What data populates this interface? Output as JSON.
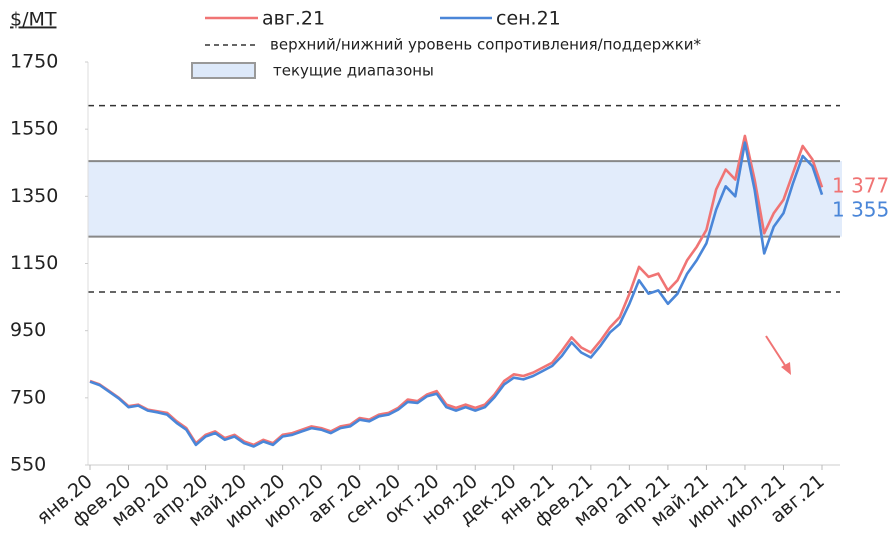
{
  "chart_data": {
    "type": "line",
    "y_label": "$/MT",
    "ylim": [
      550,
      1750
    ],
    "yticks": [
      550,
      750,
      950,
      1150,
      1350,
      1550,
      1750
    ],
    "categories": [
      "янв.20",
      null,
      null,
      null,
      "фев.20",
      null,
      null,
      null,
      "мар.20",
      null,
      null,
      null,
      "апр.20",
      null,
      null,
      null,
      "май.20",
      null,
      null,
      null,
      "июн.20",
      null,
      null,
      null,
      "июл.20",
      null,
      null,
      null,
      "авг.20",
      null,
      null,
      null,
      "сен.20",
      null,
      null,
      null,
      "окт.20",
      null,
      null,
      null,
      "ноя.20",
      null,
      null,
      null,
      "дек.20",
      null,
      null,
      null,
      "янв.21",
      null,
      null,
      null,
      "фев.21",
      null,
      null,
      null,
      "мар.21",
      null,
      null,
      null,
      "апр.21",
      null,
      null,
      null,
      "май.21",
      null,
      null,
      null,
      "июн.21",
      null,
      null,
      null,
      "июл.21",
      null,
      null,
      null,
      "авг.21"
    ],
    "series": [
      {
        "name": "авг.21",
        "color": "#f07474",
        "values": [
          800,
          790,
          770,
          750,
          725,
          730,
          715,
          710,
          705,
          680,
          660,
          615,
          640,
          650,
          630,
          640,
          620,
          610,
          625,
          615,
          640,
          645,
          655,
          665,
          660,
          650,
          665,
          670,
          690,
          685,
          700,
          705,
          720,
          745,
          740,
          760,
          770,
          730,
          720,
          730,
          720,
          730,
          760,
          800,
          820,
          815,
          825,
          840,
          855,
          890,
          930,
          900,
          885,
          920,
          960,
          990,
          1060,
          1140,
          1110,
          1120,
          1070,
          1100,
          1160,
          1200,
          1250,
          1370,
          1430,
          1400,
          1530,
          1400,
          1240,
          1300,
          1340,
          1420,
          1500,
          1460,
          1377
        ],
        "value_labels": [
          null,
          null,
          null,
          null,
          null,
          null,
          null,
          null,
          null,
          null,
          null,
          null,
          null,
          null,
          null,
          null,
          null,
          null,
          null,
          null,
          null,
          null,
          null,
          null,
          null,
          null,
          null,
          null,
          null,
          null,
          null,
          null,
          null,
          null,
          null,
          null,
          null,
          null,
          null,
          null,
          null,
          null,
          null,
          null,
          null,
          null,
          null,
          null,
          null,
          null,
          null,
          null,
          null,
          null,
          null,
          null,
          null,
          null,
          null,
          null,
          null,
          null,
          null,
          null,
          null,
          null,
          null,
          null,
          null,
          null,
          null,
          null,
          null,
          null,
          null,
          null,
          "1 377"
        ]
      },
      {
        "name": "сен.21",
        "color": "#4a86d8",
        "values": [
          798,
          788,
          768,
          748,
          722,
          727,
          712,
          707,
          700,
          675,
          655,
          610,
          635,
          645,
          625,
          635,
          615,
          605,
          620,
          610,
          635,
          640,
          650,
          660,
          655,
          645,
          660,
          665,
          685,
          680,
          695,
          700,
          715,
          738,
          735,
          755,
          762,
          722,
          712,
          722,
          712,
          722,
          752,
          790,
          810,
          805,
          815,
          830,
          845,
          875,
          915,
          885,
          870,
          905,
          945,
          970,
          1030,
          1100,
          1060,
          1070,
          1030,
          1060,
          1120,
          1160,
          1210,
          1310,
          1380,
          1350,
          1510,
          1370,
          1180,
          1260,
          1300,
          1390,
          1470,
          1440,
          1355
        ],
        "value_labels": [
          null,
          null,
          null,
          null,
          null,
          null,
          null,
          null,
          null,
          null,
          null,
          null,
          null,
          null,
          null,
          null,
          null,
          null,
          null,
          null,
          null,
          null,
          null,
          null,
          null,
          null,
          null,
          null,
          null,
          null,
          null,
          null,
          null,
          null,
          null,
          null,
          null,
          null,
          null,
          null,
          null,
          null,
          null,
          null,
          null,
          null,
          null,
          null,
          null,
          null,
          null,
          null,
          null,
          null,
          null,
          null,
          null,
          null,
          null,
          null,
          null,
          null,
          null,
          null,
          null,
          null,
          null,
          null,
          null,
          null,
          null,
          null,
          null,
          null,
          null,
          null,
          "1 355"
        ]
      }
    ],
    "levels": {
      "label": "верхний/нижний уровень сопротивления/поддержки*",
      "values": [
        1620,
        1065
      ]
    },
    "range": {
      "label": "текущие диапазоны",
      "values": [
        1230,
        1455
      ]
    }
  }
}
